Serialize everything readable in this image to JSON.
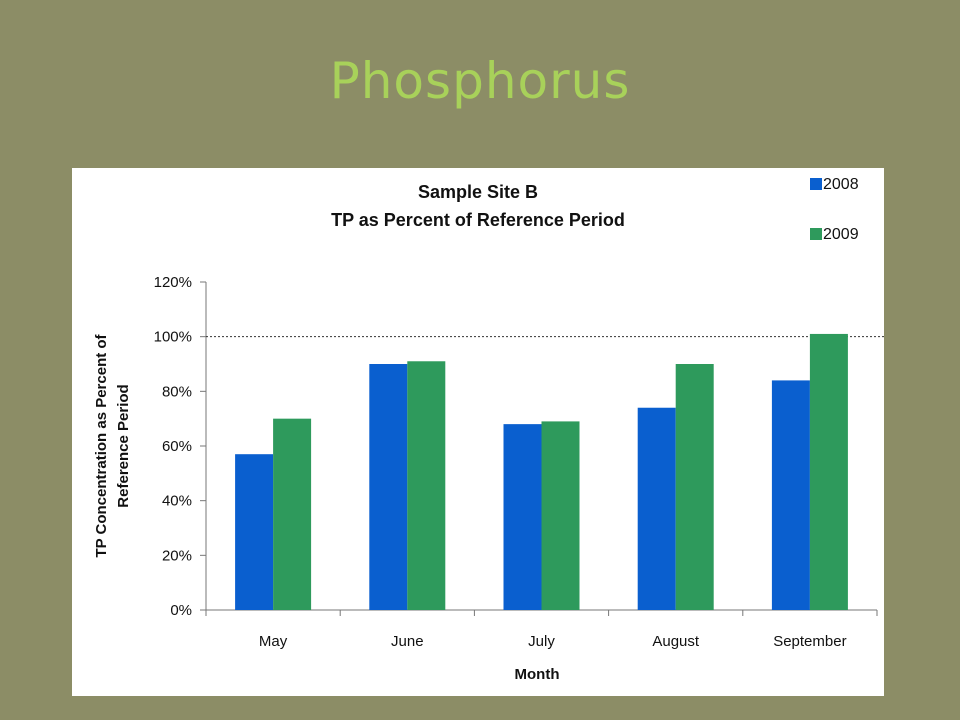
{
  "slide": {
    "title": "Phosphorus"
  },
  "colors": {
    "background": "#8c8d66",
    "title": "#a8d15a",
    "series_2008": "#0a5fcf",
    "series_2009": "#2e9a5c"
  },
  "chart_data": {
    "type": "bar",
    "title": [
      "Sample Site B",
      "TP as Percent of Reference Period"
    ],
    "xlabel": "Month",
    "ylabel": [
      "TP Concentration as Percent of",
      "Reference Period"
    ],
    "categories": [
      "May",
      "June",
      "July",
      "August",
      "September"
    ],
    "series": [
      {
        "name": "2008",
        "color": "#0a5fcf",
        "values": [
          57,
          90,
          68,
          74,
          84
        ]
      },
      {
        "name": "2009",
        "color": "#2e9a5c",
        "values": [
          70,
          91,
          69,
          90,
          101
        ]
      }
    ],
    "ylim": [
      0,
      120
    ],
    "yticks": [
      0,
      20,
      40,
      60,
      80,
      100,
      120
    ],
    "ytick_labels": [
      "0%",
      "20%",
      "40%",
      "60%",
      "80%",
      "100%",
      "120%"
    ],
    "reference_line": 100,
    "grid": false,
    "legend_position": "top-right"
  }
}
